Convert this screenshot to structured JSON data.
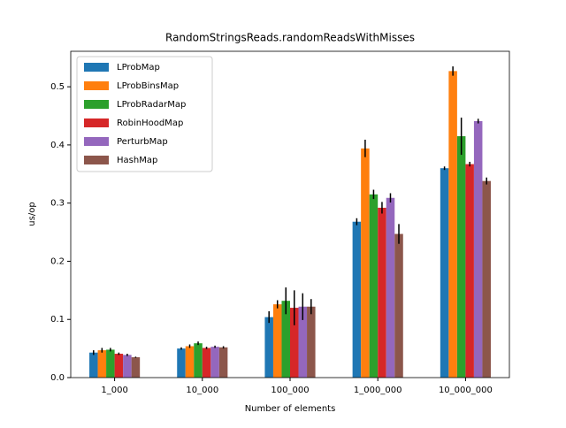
{
  "chart_data": {
    "type": "bar",
    "title": "RandomStringsReads.randomReadsWithMisses",
    "x_label": "Number of elements",
    "y_label": "us/op",
    "categories": [
      "1_000",
      "10_000",
      "100_000",
      "1_000_000",
      "10_000_000"
    ],
    "series": [
      {
        "name": "LProbMap",
        "color": "#1f77b4",
        "values": [
          0.043,
          0.05,
          0.104,
          0.268,
          0.36
        ],
        "errors": [
          0.004,
          0.002,
          0.01,
          0.006,
          0.003
        ]
      },
      {
        "name": "LProbBinsMap",
        "color": "#ff7f0e",
        "values": [
          0.047,
          0.054,
          0.126,
          0.394,
          0.527
        ],
        "errors": [
          0.004,
          0.003,
          0.007,
          0.015,
          0.008
        ]
      },
      {
        "name": "LProbRadarMap",
        "color": "#2ca02c",
        "values": [
          0.048,
          0.059,
          0.132,
          0.315,
          0.415
        ],
        "errors": [
          0.003,
          0.003,
          0.023,
          0.008,
          0.032
        ]
      },
      {
        "name": "RobinHoodMap",
        "color": "#d62728",
        "values": [
          0.041,
          0.051,
          0.12,
          0.292,
          0.367
        ],
        "errors": [
          0.002,
          0.002,
          0.03,
          0.01,
          0.004
        ]
      },
      {
        "name": "PerturbMap",
        "color": "#9467bd",
        "values": [
          0.039,
          0.053,
          0.122,
          0.309,
          0.441
        ],
        "errors": [
          0.002,
          0.002,
          0.023,
          0.008,
          0.004
        ]
      },
      {
        "name": "HashMap",
        "color": "#8c564b",
        "values": [
          0.035,
          0.052,
          0.122,
          0.247,
          0.338
        ],
        "errors": [
          0.001,
          0.002,
          0.013,
          0.017,
          0.006
        ]
      }
    ],
    "ylim": [
      0,
      0.561
    ],
    "yticks": [
      {
        "value": 0,
        "label": "0.0"
      },
      0.1,
      0.2,
      0.3,
      0.4,
      0.5
    ],
    "legend": "upper left",
    "grid": false
  }
}
